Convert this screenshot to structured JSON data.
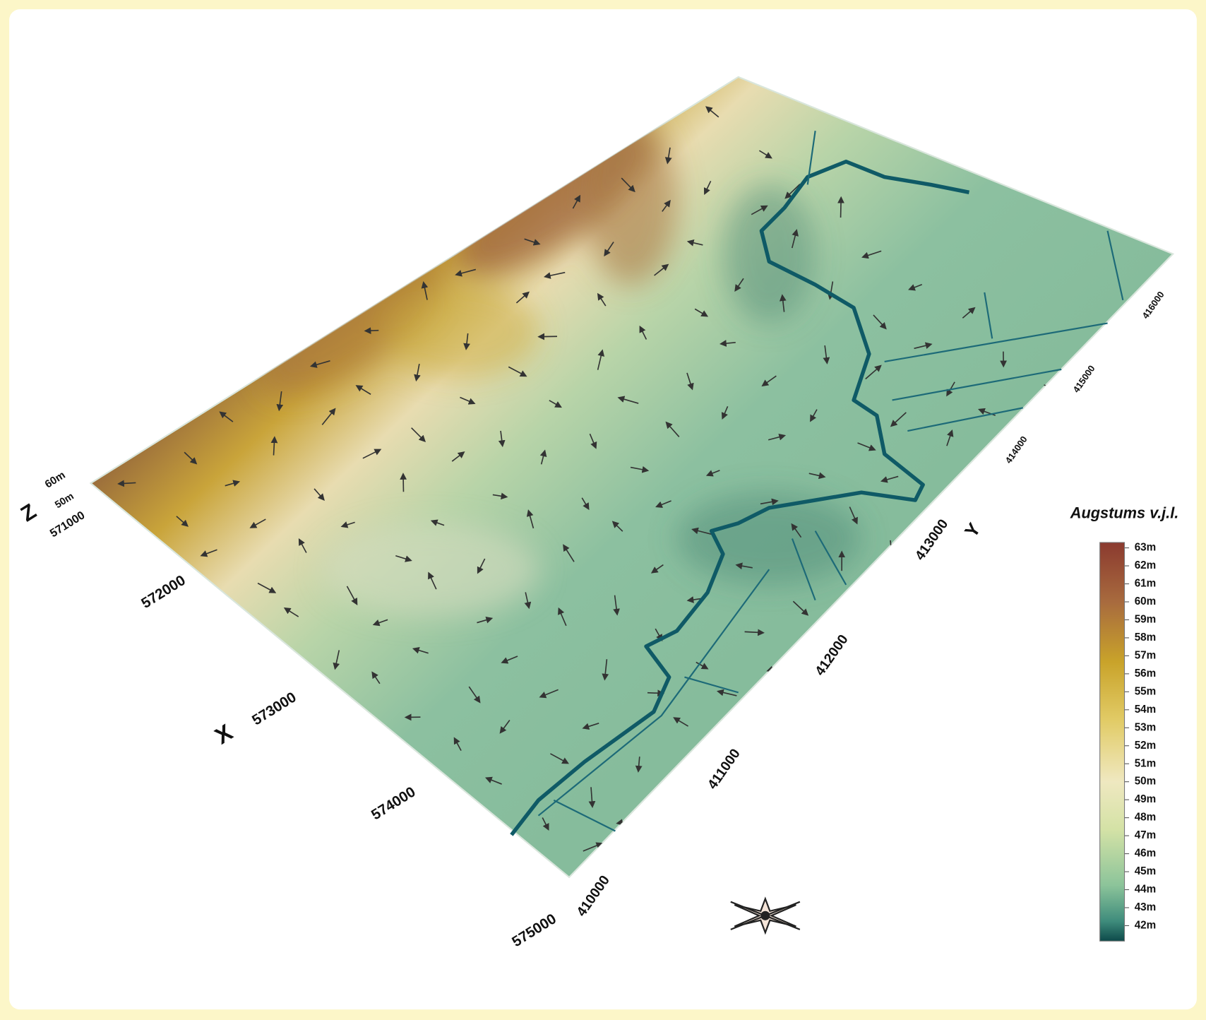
{
  "axes": {
    "z": {
      "label": "Z",
      "ticks": [
        "60m",
        "50m"
      ]
    },
    "x": {
      "label": "X",
      "ticks": [
        "571000",
        "572000",
        "573000",
        "574000",
        "575000"
      ]
    },
    "y": {
      "label": "Y",
      "ticks": [
        "410000",
        "411000",
        "412000",
        "413000",
        "414000",
        "415000",
        "416000"
      ]
    }
  },
  "legend": {
    "title": "Augstums v.j.l.",
    "labels": [
      "63m",
      "62m",
      "61m",
      "60m",
      "59m",
      "58m",
      "57m",
      "56m",
      "55m",
      "54m",
      "53m",
      "52m",
      "51m",
      "50m",
      "49m",
      "48m",
      "47m",
      "46m",
      "45m",
      "44m",
      "43m",
      "42m"
    ]
  }
}
